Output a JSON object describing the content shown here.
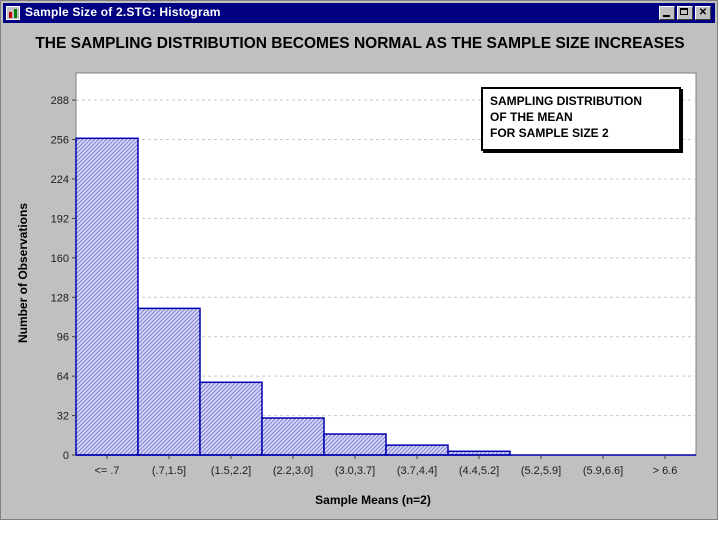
{
  "window": {
    "title": "Sample Size of 2.STG: Histogram",
    "minimize_icon": "minimize-icon",
    "maximize_icon": "maximize-icon",
    "close_icon": "close-icon"
  },
  "colors": {
    "bar_fill": "#d8d8ff",
    "bar_hatch": "#8080c8",
    "bar_border": "#0000b0",
    "titlebar": "#000080",
    "frame": "#c0c0c0"
  },
  "chart_data": {
    "type": "bar",
    "title": "THE SAMPLING DISTRIBUTION BECOMES NORMAL AS THE SAMPLE SIZE INCREASES",
    "legend_lines": [
      "SAMPLING DISTRIBUTION",
      "OF THE MEAN",
      "FOR SAMPLE SIZE 2"
    ],
    "legend_position": "top-right",
    "xlabel": "Sample Means (n=2)",
    "ylabel": "Number of Observations",
    "categories": [
      "<= .7",
      "(.7,1.5]",
      "(1.5,2.2]",
      "(2.2,3.0]",
      "(3.0,3.7]",
      "(3.7,4.4]",
      "(4.4,5.2]",
      "(5.2,5.9]",
      "(5.9,6.6]",
      "> 6.6"
    ],
    "values": [
      257,
      119,
      59,
      30,
      17,
      8,
      3,
      0,
      0,
      0
    ],
    "yticks": [
      "0",
      "32",
      "64",
      "96",
      "128",
      "160",
      "192",
      "224",
      "256",
      "288"
    ],
    "ylim": [
      0,
      310
    ],
    "grid": true
  }
}
